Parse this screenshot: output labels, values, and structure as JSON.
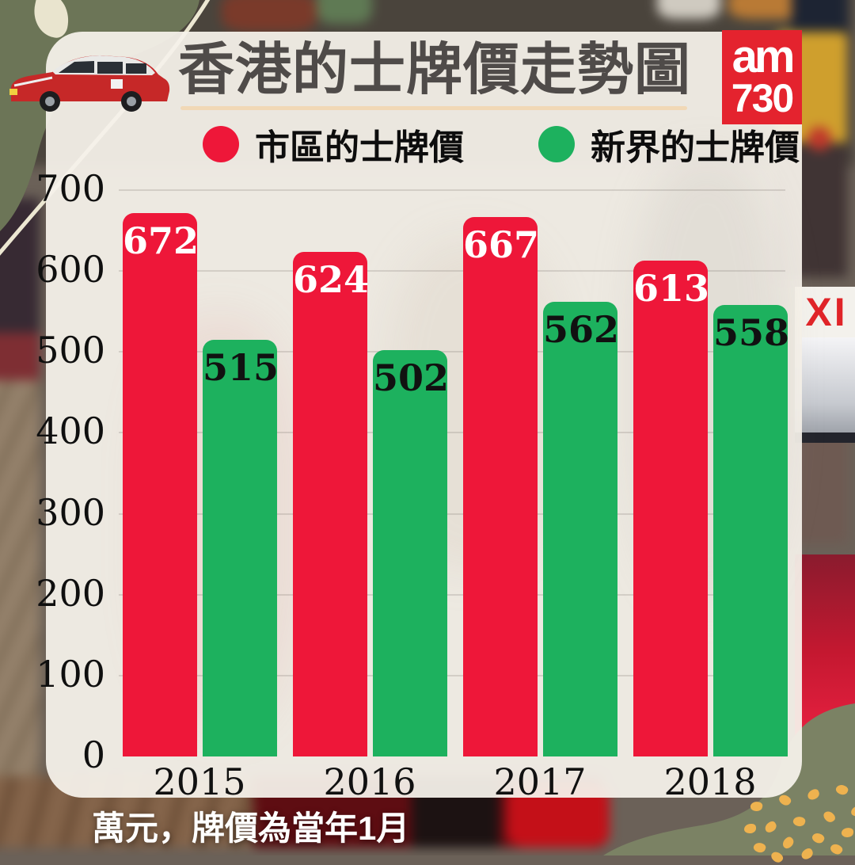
{
  "brand": {
    "name": "am730",
    "logo_line1": "am",
    "logo_line2": "730"
  },
  "legend": {
    "items": [
      {
        "label": "市區的士牌價",
        "color": "#ee1739"
      },
      {
        "label": "新界的士牌價",
        "color": "#1db15e"
      }
    ]
  },
  "chart_data": {
    "type": "bar",
    "title": "香港的士牌價走勢圖",
    "categories": [
      "2015",
      "2016",
      "2017",
      "2018"
    ],
    "series": [
      {
        "name": "市區的士牌價",
        "color": "#ee1739",
        "label_color": "#ffffff",
        "values": [
          672,
          624,
          667,
          613
        ]
      },
      {
        "name": "新界的士牌價",
        "color": "#1db15e",
        "label_color": "#111111",
        "values": [
          515,
          502,
          562,
          558
        ]
      }
    ],
    "ylim": [
      0,
      700
    ],
    "yticks": [
      0,
      100,
      200,
      300,
      400,
      500,
      600,
      700
    ],
    "grid": true,
    "legend_position": "top",
    "note": "萬元，牌價為當年1月"
  },
  "photo": {
    "taxi_sign_text": "XI"
  },
  "colors": {
    "bar_urban": "#ee1739",
    "bar_nt": "#1db15e",
    "panel": "#f5f1ea",
    "olive_top": "#6c7557",
    "olive_bottom": "#7b8264",
    "gold_dot": "#eeb24f",
    "title_gray": "#4f4b49",
    "logo_red": "#e4232e"
  }
}
